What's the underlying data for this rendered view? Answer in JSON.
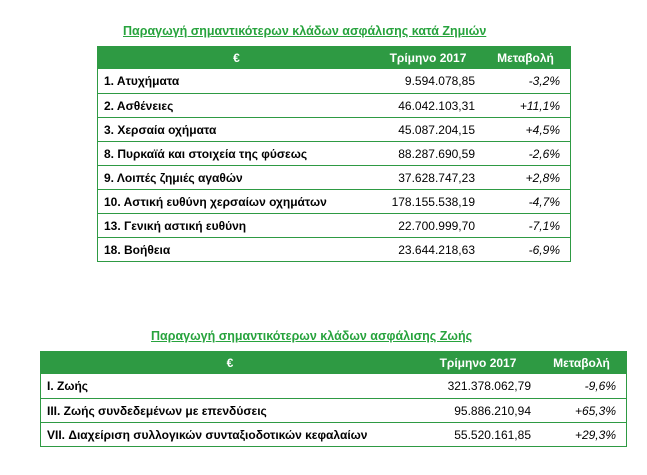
{
  "colors": {
    "header_bg": "#2e9a43",
    "title_green": "#27a33d",
    "border": "#2e9a43"
  },
  "table1": {
    "title": "Παραγωγή σημαντικότερων κλάδων ασφάλισης κατά Ζημιών",
    "headers": [
      "€",
      "Τρίμηνο 2017",
      "Μεταβολή"
    ],
    "rows": [
      {
        "label": "1. Ατυχήματα",
        "value": "9.594.078,85",
        "change": "-3,2%"
      },
      {
        "label": "2. Ασθένειες",
        "value": "46.042.103,31",
        "change": "+11,1%"
      },
      {
        "label": "3. Χερσαία οχήματα",
        "value": "45.087.204,15",
        "change": "+4,5%"
      },
      {
        "label": "8. Πυρκαϊά και στοιχεία της φύσεως",
        "value": "88.287.690,59",
        "change": "-2,6%"
      },
      {
        "label": "9. Λοιπές ζημιές αγαθών",
        "value": "37.628.747,23",
        "change": "+2,8%"
      },
      {
        "label": "10. Αστική ευθύνη χερσαίων οχημάτων",
        "value": "178.155.538,19",
        "change": "-4,7%"
      },
      {
        "label": "13. Γενική αστική ευθύνη",
        "value": "22.700.999,70",
        "change": "-7,1%"
      },
      {
        "label": "18. Βοήθεια",
        "value": "23.644.218,63",
        "change": "-6,9%"
      }
    ]
  },
  "table2": {
    "title": "Παραγωγή σημαντικότερων κλάδων ασφάλισης Ζωής",
    "headers": [
      "€",
      "Τρίμηνο 2017",
      "Μεταβολή"
    ],
    "rows": [
      {
        "label": "I. Ζωής",
        "value": "321.378.062,79",
        "change": "-9,6%"
      },
      {
        "label": "III. Ζωής συνδεδεμένων με επενδύσεις",
        "value": "95.886.210,94",
        "change": "+65,3%"
      },
      {
        "label": "VII. Διαχείριση συλλογικών συνταξιοδοτικών κεφαλαίων",
        "value": "55.520.161,85",
        "change": "+29,3%"
      }
    ]
  }
}
